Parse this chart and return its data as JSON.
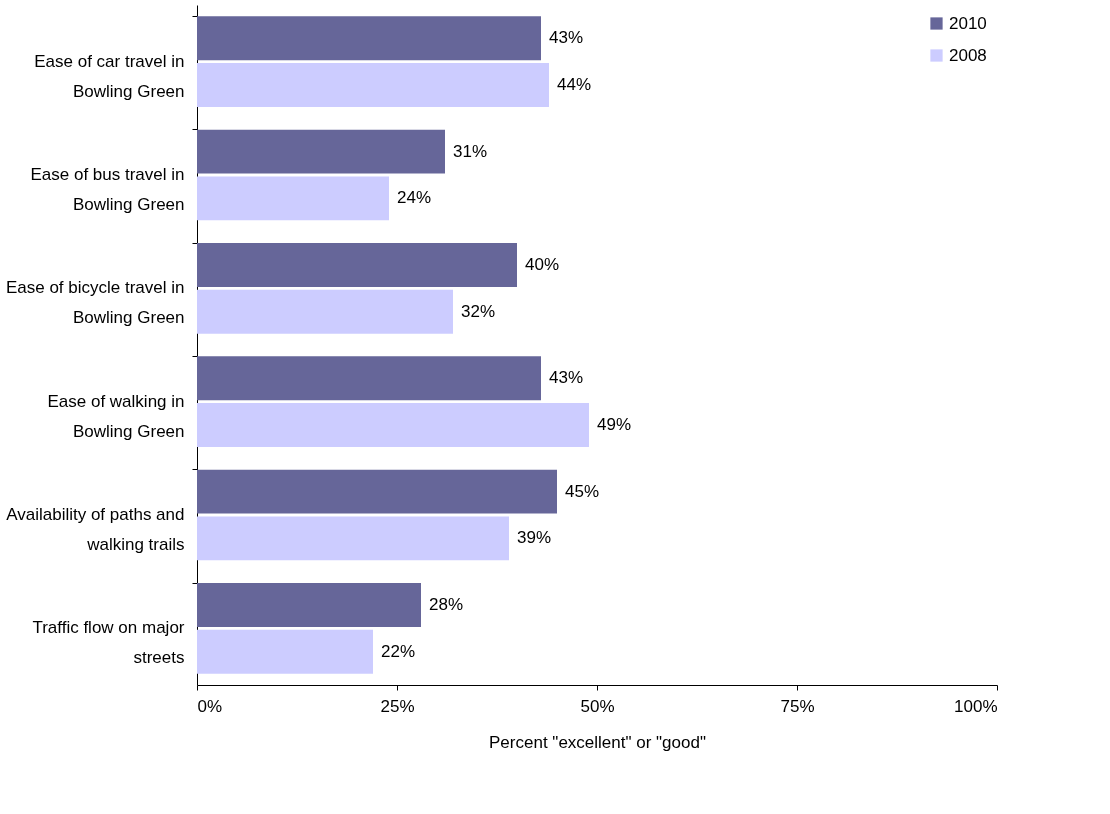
{
  "chart_data": {
    "type": "bar",
    "orientation": "horizontal",
    "categories": [
      "Ease of car travel in\nBowling Green",
      "Ease of bus travel in\nBowling Green",
      "Ease of bicycle travel in\nBowling Green",
      "Ease of walking in\nBowling Green",
      "Availability of paths and\nwalking trails",
      "Traffic flow on major\nstreets"
    ],
    "series": [
      {
        "name": "2010",
        "color": "#666699",
        "values": [
          43,
          31,
          40,
          43,
          45,
          28
        ],
        "value_labels": [
          "43%",
          "31%",
          "40%",
          "43%",
          "45%",
          "28%"
        ]
      },
      {
        "name": "2008",
        "color": "#ccccff",
        "values": [
          44,
          24,
          32,
          49,
          39,
          22
        ],
        "value_labels": [
          "44%",
          "24%",
          "32%",
          "49%",
          "39%",
          "22%"
        ]
      }
    ],
    "xlabel": "Percent \"excellent\" or \"good\"",
    "xlim": [
      0,
      100
    ],
    "xticks": [
      {
        "value": 0,
        "label": "0%"
      },
      {
        "value": 25,
        "label": "25%"
      },
      {
        "value": 50,
        "label": "50%"
      },
      {
        "value": 75,
        "label": "75%"
      },
      {
        "value": 100,
        "label": "100%"
      }
    ],
    "grid": false,
    "legend": "top right"
  }
}
